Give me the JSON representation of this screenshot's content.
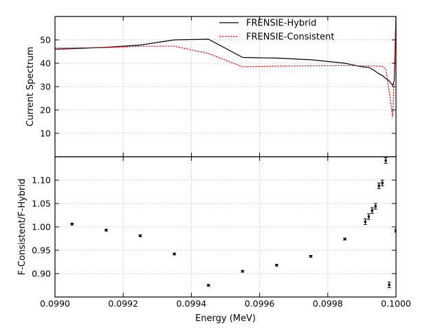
{
  "chart_data": [
    {
      "type": "line",
      "ylabel": "Current Spectrum",
      "xlim": [
        0.099,
        0.1
      ],
      "ylim": [
        0,
        60
      ],
      "yticks": [
        "10",
        "20",
        "30",
        "40",
        "50"
      ],
      "ytick_values": [
        10,
        20,
        30,
        40,
        50
      ],
      "grid": true,
      "legend_position": "top-center",
      "series": [
        {
          "name": "FRENSIE-Hybrid",
          "color": "#000000",
          "style": "solid",
          "x": [
            0.099,
            0.09915,
            0.09925,
            0.09935,
            0.09945,
            0.09955,
            0.09965,
            0.09975,
            0.09985,
            0.0999,
            0.09992,
            0.09993,
            0.09994,
            0.09995,
            0.09996,
            0.09997,
            0.09998,
            0.099985,
            0.09999,
            0.099995,
            0.1
          ],
          "y": [
            46,
            46.8,
            47.8,
            50,
            50.3,
            42.5,
            42.2,
            41.5,
            40,
            38.5,
            38.2,
            37.5,
            36.5,
            35.5,
            34.8,
            33.5,
            32.5,
            31.5,
            30.5,
            32.5,
            60
          ]
        },
        {
          "name": "FRENSIE-Consistent",
          "color": "#ff0000",
          "style": "dashed",
          "x": [
            0.099,
            0.09915,
            0.09925,
            0.09935,
            0.09945,
            0.09955,
            0.09965,
            0.09975,
            0.09985,
            0.0999,
            0.09995,
            0.09996,
            0.09997,
            0.09998,
            0.09999,
            0.099995,
            0.1
          ],
          "y": [
            46.5,
            46.7,
            47.3,
            47.3,
            44.2,
            38.5,
            38.8,
            38.9,
            39,
            38.9,
            38.8,
            38.7,
            37.5,
            28,
            17,
            35,
            60
          ]
        }
      ]
    },
    {
      "type": "scatter",
      "xlabel": "Energy (MeV)",
      "ylabel": "F-Consistent/F-Hybrid",
      "xlim": [
        0.099,
        0.1
      ],
      "ylim": [
        0.85,
        1.15
      ],
      "xticks": [
        "0.0990",
        "0.0992",
        "0.0994",
        "0.0996",
        "0.0998",
        "0.1000"
      ],
      "xtick_values": [
        0.099,
        0.0992,
        0.0994,
        0.0996,
        0.0998,
        0.1
      ],
      "yticks": [
        "0.90",
        "0.95",
        "1.00",
        "1.05",
        "1.10"
      ],
      "ytick_values": [
        0.9,
        0.95,
        1.0,
        1.05,
        1.1
      ],
      "grid": true,
      "error_bars": true,
      "x": [
        0.09905,
        0.09915,
        0.09925,
        0.09935,
        0.09945,
        0.09955,
        0.09965,
        0.09975,
        0.09985,
        0.09991,
        0.09992,
        0.09993,
        0.09994,
        0.09995,
        0.09996,
        0.09997,
        0.09998,
        0.1
      ],
      "y": [
        1.006,
        0.993,
        0.981,
        0.942,
        0.875,
        0.905,
        0.918,
        0.937,
        0.974,
        1.011,
        1.022,
        1.035,
        1.044,
        1.088,
        1.094,
        1.142,
        0.876,
        0.992
      ],
      "err": [
        0.002,
        0.002,
        0.002,
        0.002,
        0.002,
        0.002,
        0.002,
        0.002,
        0.002,
        0.006,
        0.006,
        0.006,
        0.006,
        0.006,
        0.006,
        0.006,
        0.006,
        0.003
      ]
    }
  ]
}
